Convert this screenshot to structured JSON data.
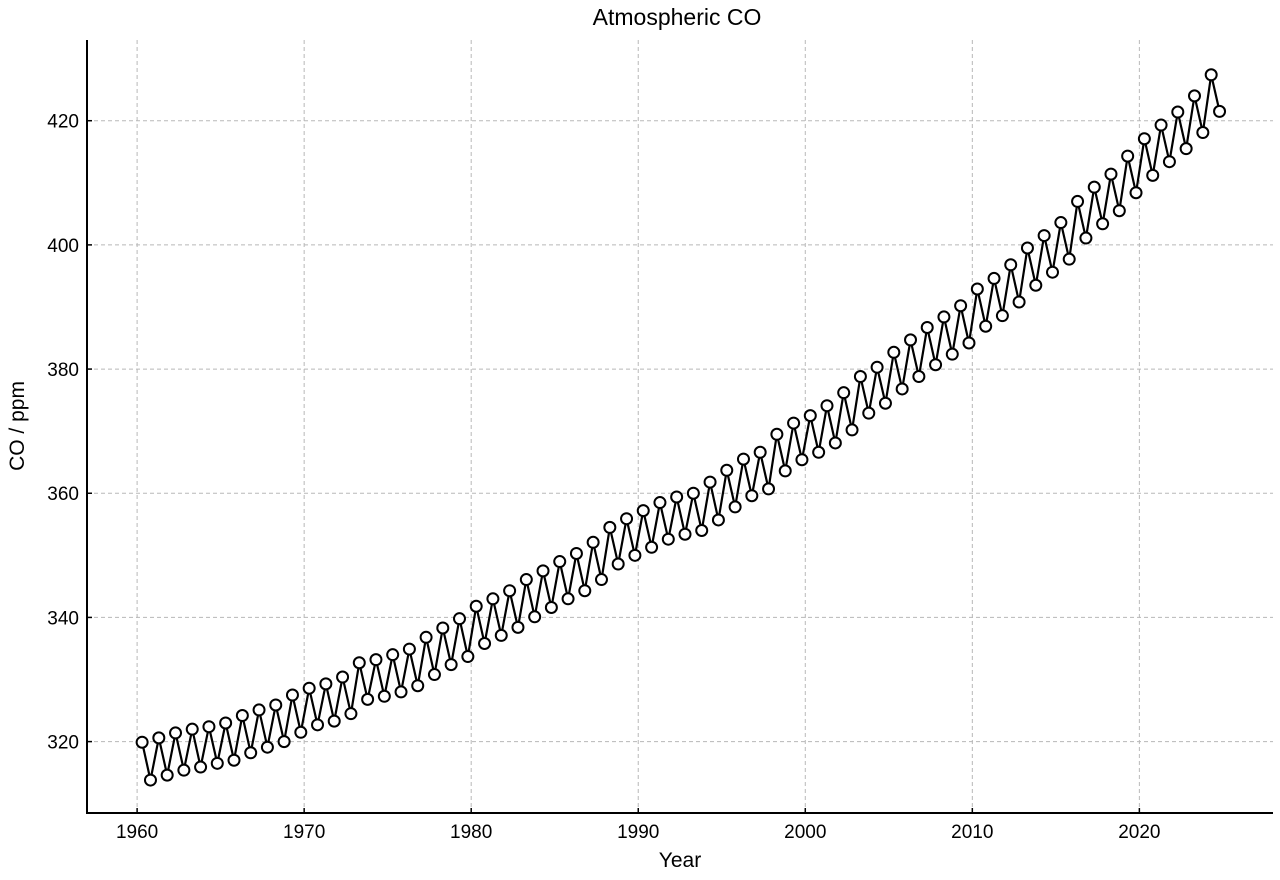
{
  "chart_data": {
    "type": "line",
    "title": "Atmospheric CO",
    "xlabel": "Year",
    "ylabel": "CO  / ppm",
    "xlim": [
      1957,
      2028
    ],
    "ylim": [
      308.5,
      433
    ],
    "xticks": [
      1960,
      1970,
      1980,
      1990,
      2000,
      2010,
      2020
    ],
    "yticks": [
      320,
      340,
      360,
      380,
      400,
      420
    ],
    "grid": true,
    "marker": "open-circle",
    "series": [
      {
        "x": [
          1960.3,
          1960.8,
          1961.3,
          1961.8,
          1962.3,
          1962.8,
          1963.3,
          1963.8,
          1964.3,
          1964.8,
          1965.3,
          1965.8,
          1966.3,
          1966.8,
          1967.3,
          1967.8,
          1968.3,
          1968.8,
          1969.3,
          1969.8,
          1970.3,
          1970.8,
          1971.3,
          1971.8,
          1972.3,
          1972.8,
          1973.3,
          1973.8,
          1974.3,
          1974.8,
          1975.3,
          1975.8,
          1976.3,
          1976.8,
          1977.3,
          1977.8,
          1978.3,
          1978.8,
          1979.3,
          1979.8,
          1980.3,
          1980.8,
          1981.3,
          1981.8,
          1982.3,
          1982.8,
          1983.3,
          1983.8,
          1984.3,
          1984.8,
          1985.3,
          1985.8,
          1986.3,
          1986.8,
          1987.3,
          1987.8,
          1988.3,
          1988.8,
          1989.3,
          1989.8,
          1990.3,
          1990.8,
          1991.3,
          1991.8,
          1992.3,
          1992.8,
          1993.3,
          1993.8,
          1994.3,
          1994.8,
          1995.3,
          1995.8,
          1996.3,
          1996.8,
          1997.3,
          1997.8,
          1998.3,
          1998.8,
          1999.3,
          1999.8,
          2000.3,
          2000.8,
          2001.3,
          2001.8,
          2002.3,
          2002.8,
          2003.3,
          2003.8,
          2004.3,
          2004.8,
          2005.3,
          2005.8,
          2006.3,
          2006.8,
          2007.3,
          2007.8,
          2008.3,
          2008.8,
          2009.3,
          2009.8,
          2010.3,
          2010.8,
          2011.3,
          2011.8,
          2012.3,
          2012.8,
          2013.3,
          2013.8,
          2014.3,
          2014.8,
          2015.3,
          2015.8,
          2016.3,
          2016.8,
          2017.3,
          2017.8,
          2018.3,
          2018.8,
          2019.3,
          2019.8,
          2020.3,
          2020.8,
          2021.3,
          2021.8,
          2022.3,
          2022.8,
          2023.3,
          2023.8,
          2024.3,
          2024.8
        ],
        "y": [
          319.9,
          313.8,
          320.6,
          314.6,
          321.4,
          315.4,
          322.0,
          315.9,
          322.4,
          316.5,
          323.0,
          317.0,
          324.2,
          318.2,
          325.1,
          319.1,
          325.9,
          320.0,
          327.5,
          321.5,
          328.6,
          322.7,
          329.3,
          323.3,
          330.4,
          324.5,
          332.7,
          326.8,
          333.2,
          327.3,
          334.0,
          328.0,
          334.9,
          329.0,
          336.8,
          330.8,
          338.3,
          332.4,
          339.8,
          333.7,
          341.8,
          335.8,
          343.0,
          337.1,
          344.3,
          338.4,
          346.1,
          340.1,
          347.5,
          341.6,
          349.0,
          343.0,
          350.3,
          344.3,
          352.1,
          346.1,
          354.5,
          348.6,
          355.9,
          350.0,
          357.2,
          351.3,
          358.5,
          352.6,
          359.4,
          353.4,
          360.0,
          354.0,
          361.8,
          355.7,
          363.7,
          357.8,
          365.5,
          359.6,
          366.6,
          360.7,
          369.5,
          363.6,
          371.3,
          365.4,
          372.5,
          366.6,
          374.1,
          368.1,
          376.2,
          370.2,
          378.8,
          372.9,
          380.3,
          374.5,
          382.7,
          376.8,
          384.7,
          378.8,
          386.7,
          380.7,
          388.4,
          382.4,
          390.2,
          384.2,
          392.9,
          386.9,
          394.6,
          388.6,
          396.8,
          390.8,
          399.5,
          393.5,
          401.5,
          395.6,
          403.6,
          397.7,
          407.0,
          401.1,
          409.3,
          403.4,
          411.4,
          405.5,
          414.3,
          408.4,
          417.1,
          411.2,
          419.3,
          413.4,
          421.4,
          415.5,
          424.0,
          418.1,
          427.4,
          421.5
        ]
      }
    ]
  }
}
